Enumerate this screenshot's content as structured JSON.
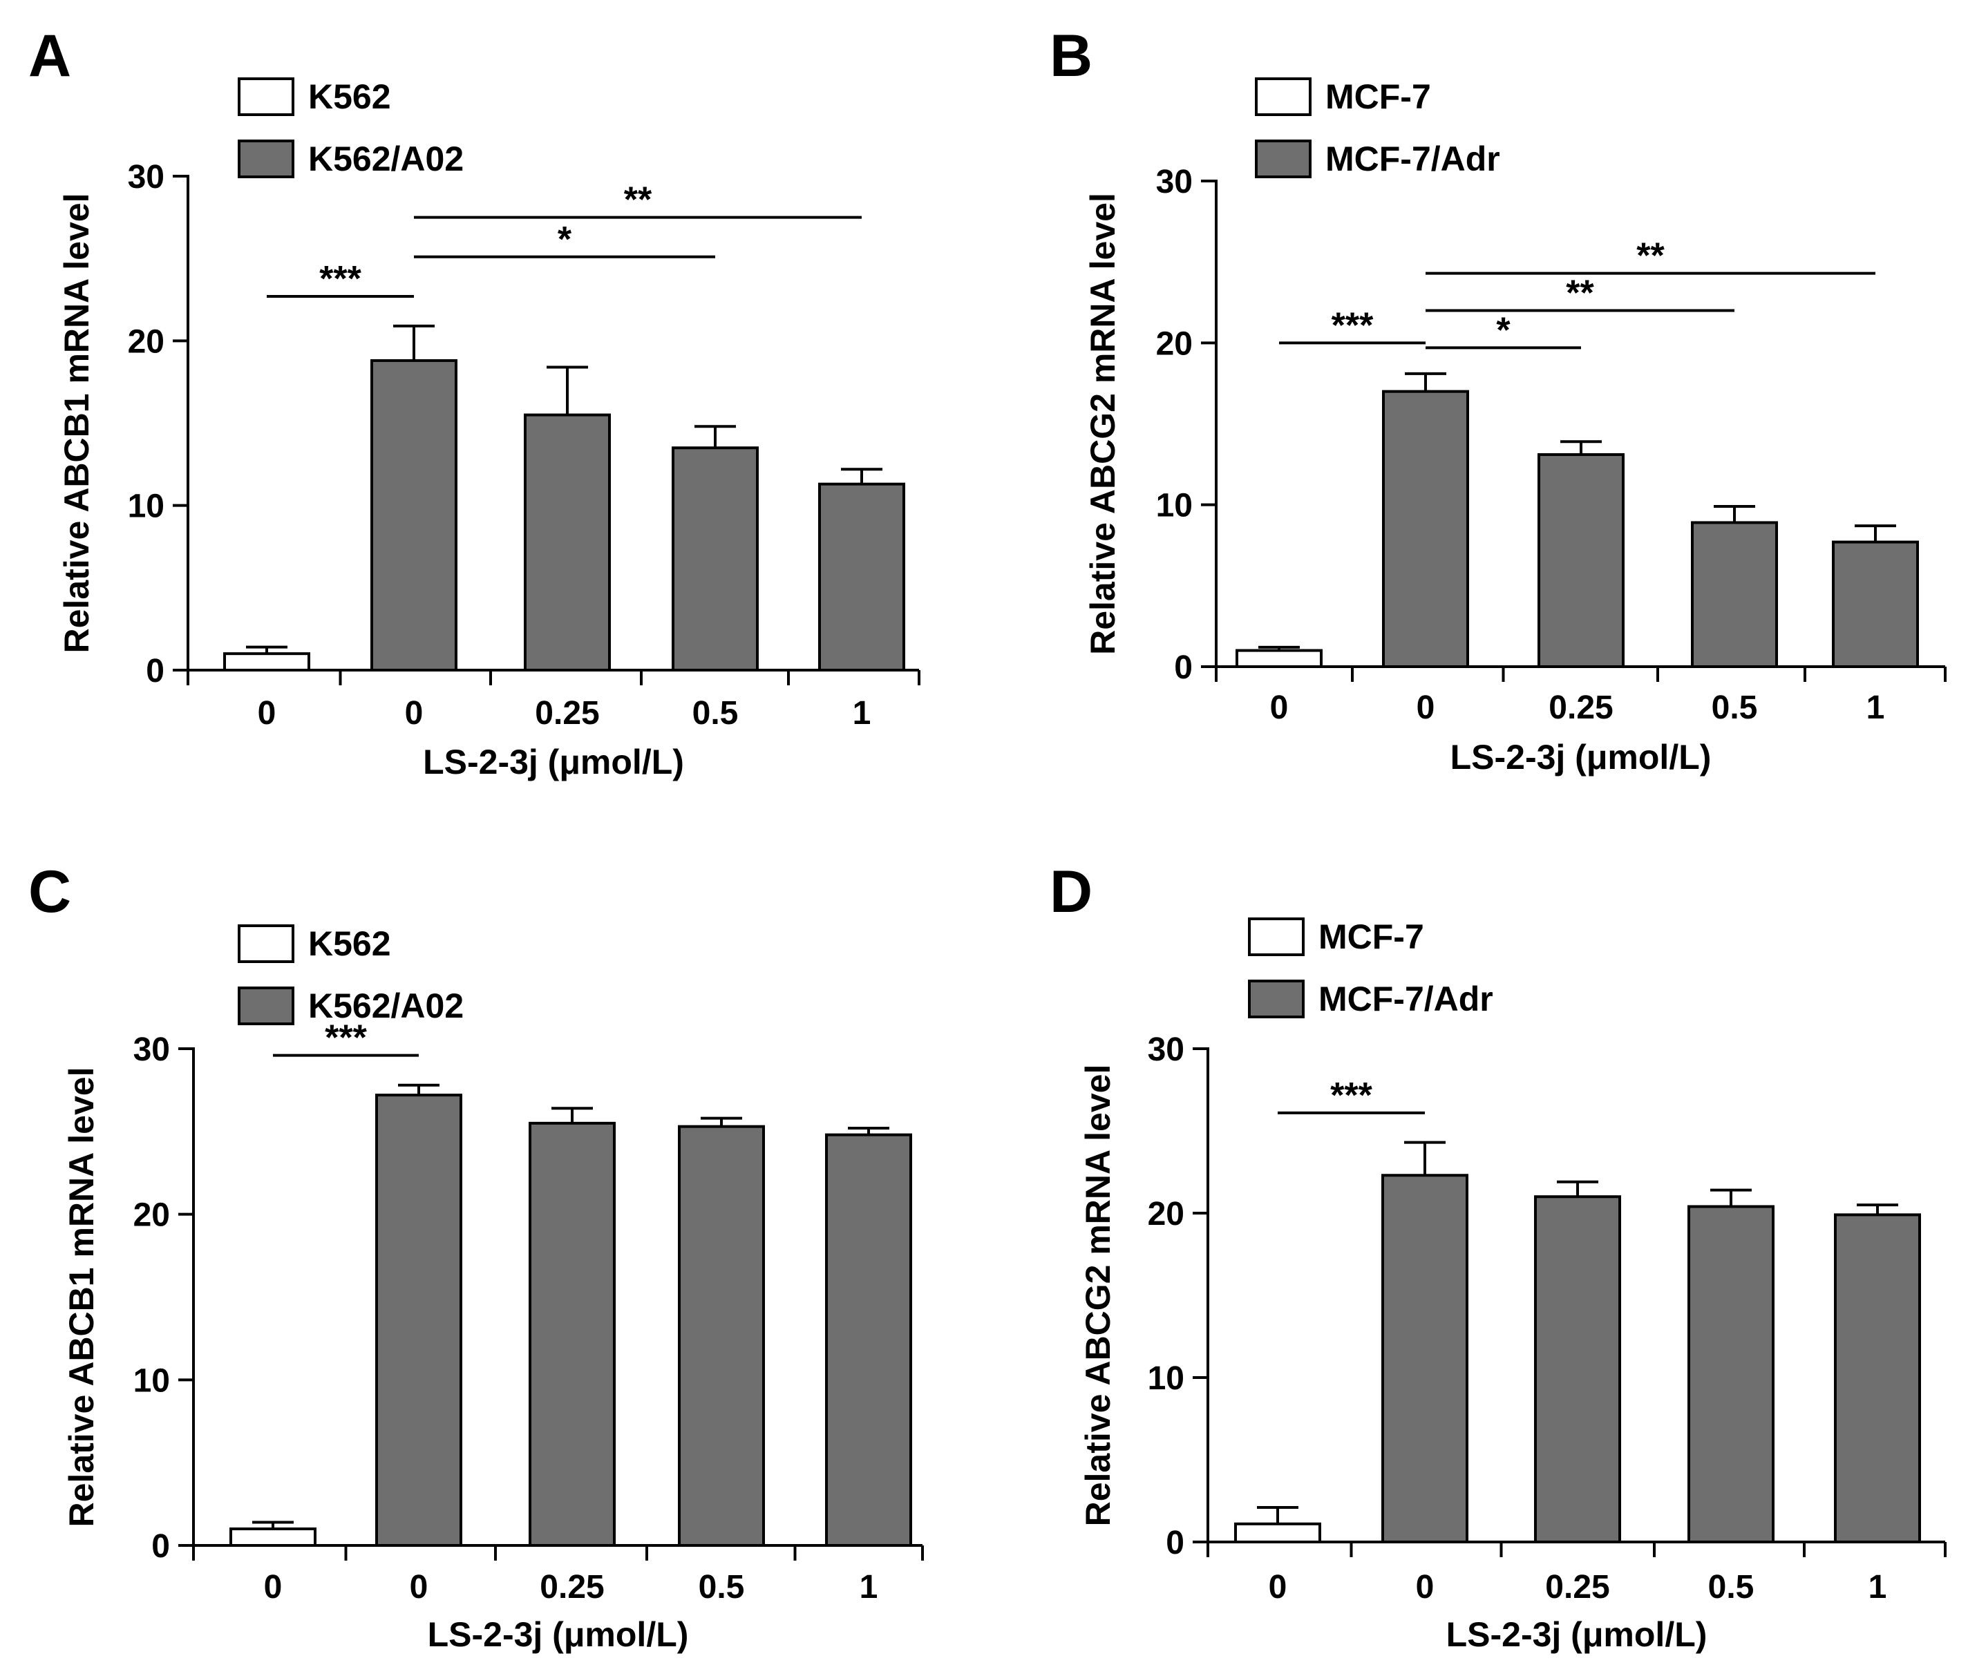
{
  "chart_data": [
    {
      "panel": "A",
      "type": "bar",
      "legend": [
        {
          "name": "K562",
          "color": "#ffffff"
        },
        {
          "name": "K562/A02",
          "color": "#6f6f6f"
        }
      ],
      "categories": [
        "0",
        "0",
        "0.25",
        "0.5",
        "1"
      ],
      "series_index": [
        0,
        1,
        1,
        1,
        1
      ],
      "values": [
        1.0,
        18.8,
        15.5,
        13.5,
        11.3
      ],
      "errors": [
        0.4,
        2.1,
        2.9,
        1.3,
        0.9
      ],
      "ylabel": "Relative ABCB1 mRNA level",
      "xlabel": "LS-2-3j (μmol/L)",
      "ylim": [
        0,
        30
      ],
      "yticks": [
        "0",
        "10",
        "20",
        "30"
      ],
      "significance": [
        {
          "from": 0,
          "to": 1,
          "label": "***"
        },
        {
          "from": 1,
          "to": 3,
          "label": "*"
        },
        {
          "from": 1,
          "to": 4,
          "label": "**"
        }
      ]
    },
    {
      "panel": "B",
      "type": "bar",
      "legend": [
        {
          "name": "MCF-7",
          "color": "#ffffff"
        },
        {
          "name": "MCF-7/Adr",
          "color": "#6f6f6f"
        }
      ],
      "categories": [
        "0",
        "0",
        "0.25",
        "0.5",
        "1"
      ],
      "series_index": [
        0,
        1,
        1,
        1,
        1
      ],
      "values": [
        1.0,
        17.0,
        13.1,
        8.9,
        7.7
      ],
      "errors": [
        0.2,
        1.1,
        0.8,
        1.0,
        1.0
      ],
      "ylabel": "Relative ABCG2 mRNA level",
      "xlabel": "LS-2-3j (μmol/L)",
      "ylim": [
        0,
        30
      ],
      "yticks": [
        "0",
        "10",
        "20",
        "30"
      ],
      "significance": [
        {
          "from": 0,
          "to": 1,
          "label": "***"
        },
        {
          "from": 1,
          "to": 2,
          "label": "*"
        },
        {
          "from": 1,
          "to": 3,
          "label": "**"
        },
        {
          "from": 1,
          "to": 4,
          "label": "**"
        }
      ]
    },
    {
      "panel": "C",
      "type": "bar",
      "legend": [
        {
          "name": "K562",
          "color": "#ffffff"
        },
        {
          "name": "K562/A02",
          "color": "#6f6f6f"
        }
      ],
      "categories": [
        "0",
        "0",
        "0.25",
        "0.5",
        "1"
      ],
      "series_index": [
        0,
        1,
        1,
        1,
        1
      ],
      "values": [
        1.0,
        27.2,
        25.5,
        25.3,
        24.8
      ],
      "errors": [
        0.4,
        0.6,
        0.9,
        0.5,
        0.4
      ],
      "ylabel": "Relative ABCB1 mRNA level",
      "xlabel": "LS-2-3j (μmol/L)",
      "ylim": [
        0,
        30
      ],
      "yticks": [
        "0",
        "10",
        "20",
        "30"
      ],
      "significance": [
        {
          "from": 0,
          "to": 1,
          "label": "***"
        }
      ]
    },
    {
      "panel": "D",
      "type": "bar",
      "legend": [
        {
          "name": "MCF-7",
          "color": "#ffffff"
        },
        {
          "name": "MCF-7/Adr",
          "color": "#6f6f6f"
        }
      ],
      "categories": [
        "0",
        "0",
        "0.25",
        "0.5",
        "1"
      ],
      "series_index": [
        0,
        1,
        1,
        1,
        1
      ],
      "values": [
        1.1,
        22.3,
        21.0,
        20.4,
        19.9
      ],
      "errors": [
        1.0,
        2.0,
        0.9,
        1.0,
        0.6
      ],
      "ylabel": "Relative ABCG2 mRNA level",
      "xlabel": "LS-2-3j (μmol/L)",
      "ylim": [
        0,
        30
      ],
      "yticks": [
        "0",
        "10",
        "20",
        "30"
      ],
      "significance": [
        {
          "from": 0,
          "to": 1,
          "label": "***"
        }
      ]
    }
  ]
}
